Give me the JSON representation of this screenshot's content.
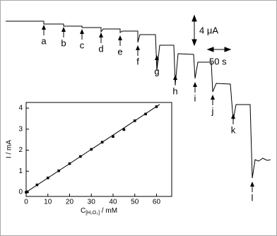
{
  "trace": {
    "step_labels": [
      "a",
      "b",
      "c",
      "d",
      "e",
      "f",
      "g",
      "h",
      "i",
      "j",
      "k",
      "l"
    ],
    "current_scale": "4 μA",
    "time_scale": "50 s"
  },
  "chart_data": {
    "type": "scatter",
    "ylabel": "I / mA",
    "xlabel": {
      "main": "C",
      "sub": "[H₂O₂]",
      "unit": " / mM"
    },
    "x": [
      0,
      0.5,
      5,
      10,
      15,
      20,
      25,
      30,
      35,
      40,
      45,
      50,
      55,
      60
    ],
    "series": [
      {
        "color": "#000000",
        "values": [
          0,
          0.02,
          0.35,
          0.68,
          1.02,
          1.36,
          1.7,
          2.04,
          2.38,
          2.65,
          2.98,
          3.4,
          3.72,
          4.07
        ]
      }
    ],
    "fit": {
      "x": [
        0,
        61.5
      ],
      "values": [
        0,
        4.18
      ],
      "color": "#000000"
    },
    "xlim": [
      0,
      67
    ],
    "ylim": [
      -0.2,
      4.27
    ],
    "xticks": [
      0,
      10,
      20,
      30,
      40,
      50,
      60
    ],
    "yticks": [
      0,
      1,
      2,
      3,
      4
    ]
  }
}
